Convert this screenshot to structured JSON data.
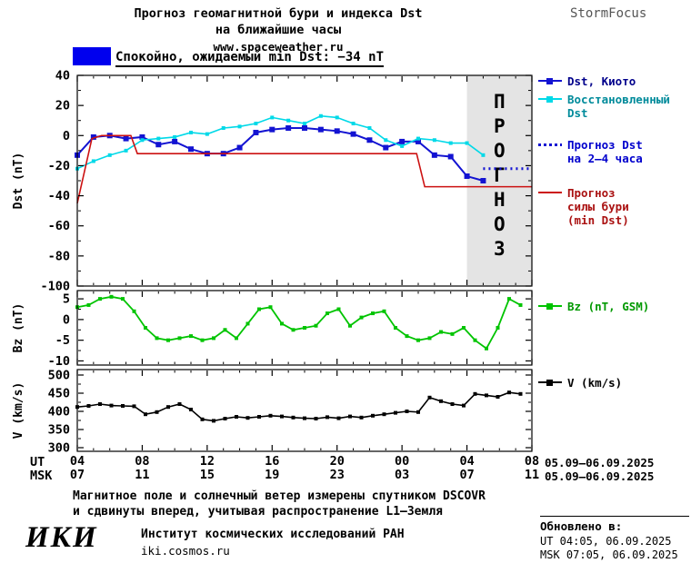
{
  "header": {
    "title_line1": "Прогноз геомагнитной бури и индекса Dst",
    "title_line2": "на ближайшие часы",
    "website": "www.spaceweather.ru",
    "brand": "StormFocus"
  },
  "status": {
    "label": "Спокойно, ожидаемый min Dst: −34 nT",
    "swatch_color": "#0000EE"
  },
  "chart_data": [
    {
      "type": "line",
      "ylabel": "Dst (nT)",
      "ylim": [
        -100,
        40
      ],
      "yticks": [
        40,
        20,
        0,
        -20,
        -40,
        -60,
        -80,
        -100
      ],
      "xlim": [
        4,
        32
      ],
      "grid": false,
      "forecast_band": {
        "start": 28,
        "end": 32,
        "label": "ПРОГНОЗ",
        "fill": "#E4E4E4",
        "text_color": "#C3C3C3"
      },
      "series": [
        {
          "name": "Dst, Киото",
          "color": "#1313D2",
          "style": "solid",
          "marker": "square",
          "marker_size": 6,
          "width": 2,
          "x": [
            4,
            5,
            6,
            7,
            8,
            9,
            10,
            11,
            12,
            13,
            14,
            15,
            16,
            17,
            18,
            19,
            20,
            21,
            22,
            23,
            24,
            25,
            26,
            27,
            28,
            29
          ],
          "y": [
            -13,
            -1,
            0,
            -2,
            -1,
            -6,
            -4,
            -9,
            -12,
            -12,
            -8,
            2,
            4,
            5,
            5,
            4,
            3,
            1,
            -3,
            -8,
            -4,
            -4,
            -13,
            -14,
            -27,
            -30
          ]
        },
        {
          "name": "Восстановленный Dst",
          "color": "#00D9E8",
          "style": "solid",
          "marker": "square",
          "marker_size": 4,
          "width": 1.6,
          "x": [
            4,
            5,
            6,
            7,
            8,
            9,
            10,
            11,
            12,
            13,
            14,
            15,
            16,
            17,
            18,
            19,
            20,
            21,
            22,
            23,
            24,
            25,
            26,
            27,
            28,
            29
          ],
          "y": [
            -22,
            -17,
            -13,
            -10,
            -3,
            -2,
            -1,
            2,
            1,
            5,
            6,
            8,
            12,
            10,
            8,
            13,
            12,
            8,
            5,
            -3,
            -7,
            -2,
            -3,
            -5,
            -5,
            -13
          ]
        },
        {
          "name": "Прогноз Dst на 2–4 часа",
          "color": "#1313D2",
          "style": "dotted",
          "marker": "none",
          "width": 3,
          "x": [
            29,
            31.8
          ],
          "y": [
            -22,
            -22
          ]
        },
        {
          "name": "Прогноз силы бури (min Dst)",
          "color": "#CC1111",
          "style": "solid",
          "marker": "none",
          "width": 1.6,
          "x": [
            4,
            4.9,
            5.5,
            7.3,
            7.7,
            24.9,
            25.4,
            32
          ],
          "y": [
            -45,
            -2,
            0,
            0,
            -12,
            -12,
            -34,
            -34
          ]
        }
      ]
    },
    {
      "type": "line",
      "ylabel": "Bz (nT)",
      "ylim": [
        -11,
        7
      ],
      "yticks": [
        5,
        0,
        -5,
        -10
      ],
      "xlim": [
        4,
        32
      ],
      "grid": false,
      "series": [
        {
          "name": "Bz (nT, GSM)",
          "color": "#00C400",
          "style": "solid",
          "marker": "square",
          "marker_size": 4,
          "width": 1.8,
          "x": [
            4,
            4.7,
            5.4,
            6.1,
            6.8,
            7.5,
            8.2,
            8.9,
            9.6,
            10.3,
            11,
            11.7,
            12.4,
            13.1,
            13.8,
            14.5,
            15.2,
            15.9,
            16.6,
            17.3,
            18,
            18.7,
            19.4,
            20.1,
            20.8,
            21.5,
            22.2,
            22.9,
            23.6,
            24.3,
            25,
            25.7,
            26.4,
            27.1,
            27.8,
            28.5,
            29.2,
            29.9,
            30.6,
            31.3
          ],
          "y": [
            3,
            3.5,
            5,
            5.5,
            5,
            2,
            -2,
            -4.5,
            -5,
            -4.5,
            -4,
            -5,
            -4.5,
            -2.5,
            -4.5,
            -1,
            2.5,
            3,
            -1,
            -2.5,
            -2,
            -1.5,
            1.5,
            2.5,
            -1.5,
            0.5,
            1.5,
            2,
            -2,
            -4,
            -5,
            -4.5,
            -3,
            -3.5,
            -2,
            -5,
            -7,
            -2,
            5,
            3.5
          ]
        }
      ]
    },
    {
      "type": "line",
      "ylabel": "V (km/s)",
      "ylim": [
        290,
        515
      ],
      "yticks": [
        500,
        450,
        400,
        350,
        300
      ],
      "xlim": [
        4,
        32
      ],
      "grid": false,
      "series": [
        {
          "name": "V (km/s)",
          "color": "#000000",
          "style": "solid",
          "marker": "square",
          "marker_size": 4,
          "width": 1.6,
          "x": [
            4,
            4.7,
            5.4,
            6.1,
            6.8,
            7.5,
            8.2,
            8.9,
            9.6,
            10.3,
            11,
            11.7,
            12.4,
            13.1,
            13.8,
            14.5,
            15.2,
            15.9,
            16.6,
            17.3,
            18,
            18.7,
            19.4,
            20.1,
            20.8,
            21.5,
            22.2,
            22.9,
            23.6,
            24.3,
            25,
            25.7,
            26.4,
            27.1,
            27.8,
            28.5,
            29.2,
            29.9,
            30.6,
            31.3
          ],
          "y": [
            412,
            415,
            420,
            416,
            415,
            414,
            392,
            398,
            412,
            420,
            405,
            378,
            374,
            380,
            385,
            382,
            385,
            388,
            386,
            383,
            381,
            380,
            384,
            381,
            386,
            383,
            388,
            392,
            396,
            400,
            398,
            438,
            428,
            420,
            416,
            448,
            444,
            440,
            452,
            448
          ]
        }
      ]
    }
  ],
  "xaxis": {
    "ut_label": "UT",
    "msk_label": "MSK",
    "hours": [
      4,
      8,
      12,
      16,
      20,
      24,
      28,
      32
    ],
    "ut_ticks": [
      "04",
      "08",
      "12",
      "16",
      "20",
      "00",
      "04",
      "08"
    ],
    "msk_ticks": [
      "07",
      "11",
      "15",
      "19",
      "23",
      "03",
      "07",
      "11"
    ],
    "ut_range": "05.09–06.09.2025",
    "msk_range": "05.09–06.09.2025"
  },
  "legend": {
    "dst_kyoto": {
      "label": "Dst, Киото",
      "color": "#1313D2",
      "text_color": "#00008B"
    },
    "dst_restored": {
      "label": "Восстановленный\nDst",
      "color": "#00D9E8",
      "text_color": "#008B9B"
    },
    "dst_forecast": {
      "label": "Прогноз Dst\nна 2–4 часа",
      "color": "#1313D2",
      "text_color": "#0000CD"
    },
    "storm_forecast": {
      "label": "Прогноз\nсилы бури\n(min Dst)",
      "color": "#CC1111",
      "text_color": "#AA1111"
    },
    "bz": {
      "label": "Bz (nT, GSM)",
      "color": "#00C400",
      "text_color": "#009900"
    },
    "v": {
      "label": "V (km/s)",
      "color": "#000000",
      "text_color": "#000000"
    }
  },
  "footer": {
    "note_line1": "Магнитное поле и солнечный ветер измерены спутником DSCOVR",
    "note_line2": "и сдвинуты вперед, учитывая распространение L1–Земля",
    "logo": "ИКИ",
    "institute": "Институт космических исследований РАН",
    "institute_site": "iki.cosmos.ru",
    "updated_label": "Обновлено в:",
    "updated_ut": "UT  04:05, 06.09.2025",
    "updated_msk": "MSK 07:05, 06.09.2025"
  }
}
